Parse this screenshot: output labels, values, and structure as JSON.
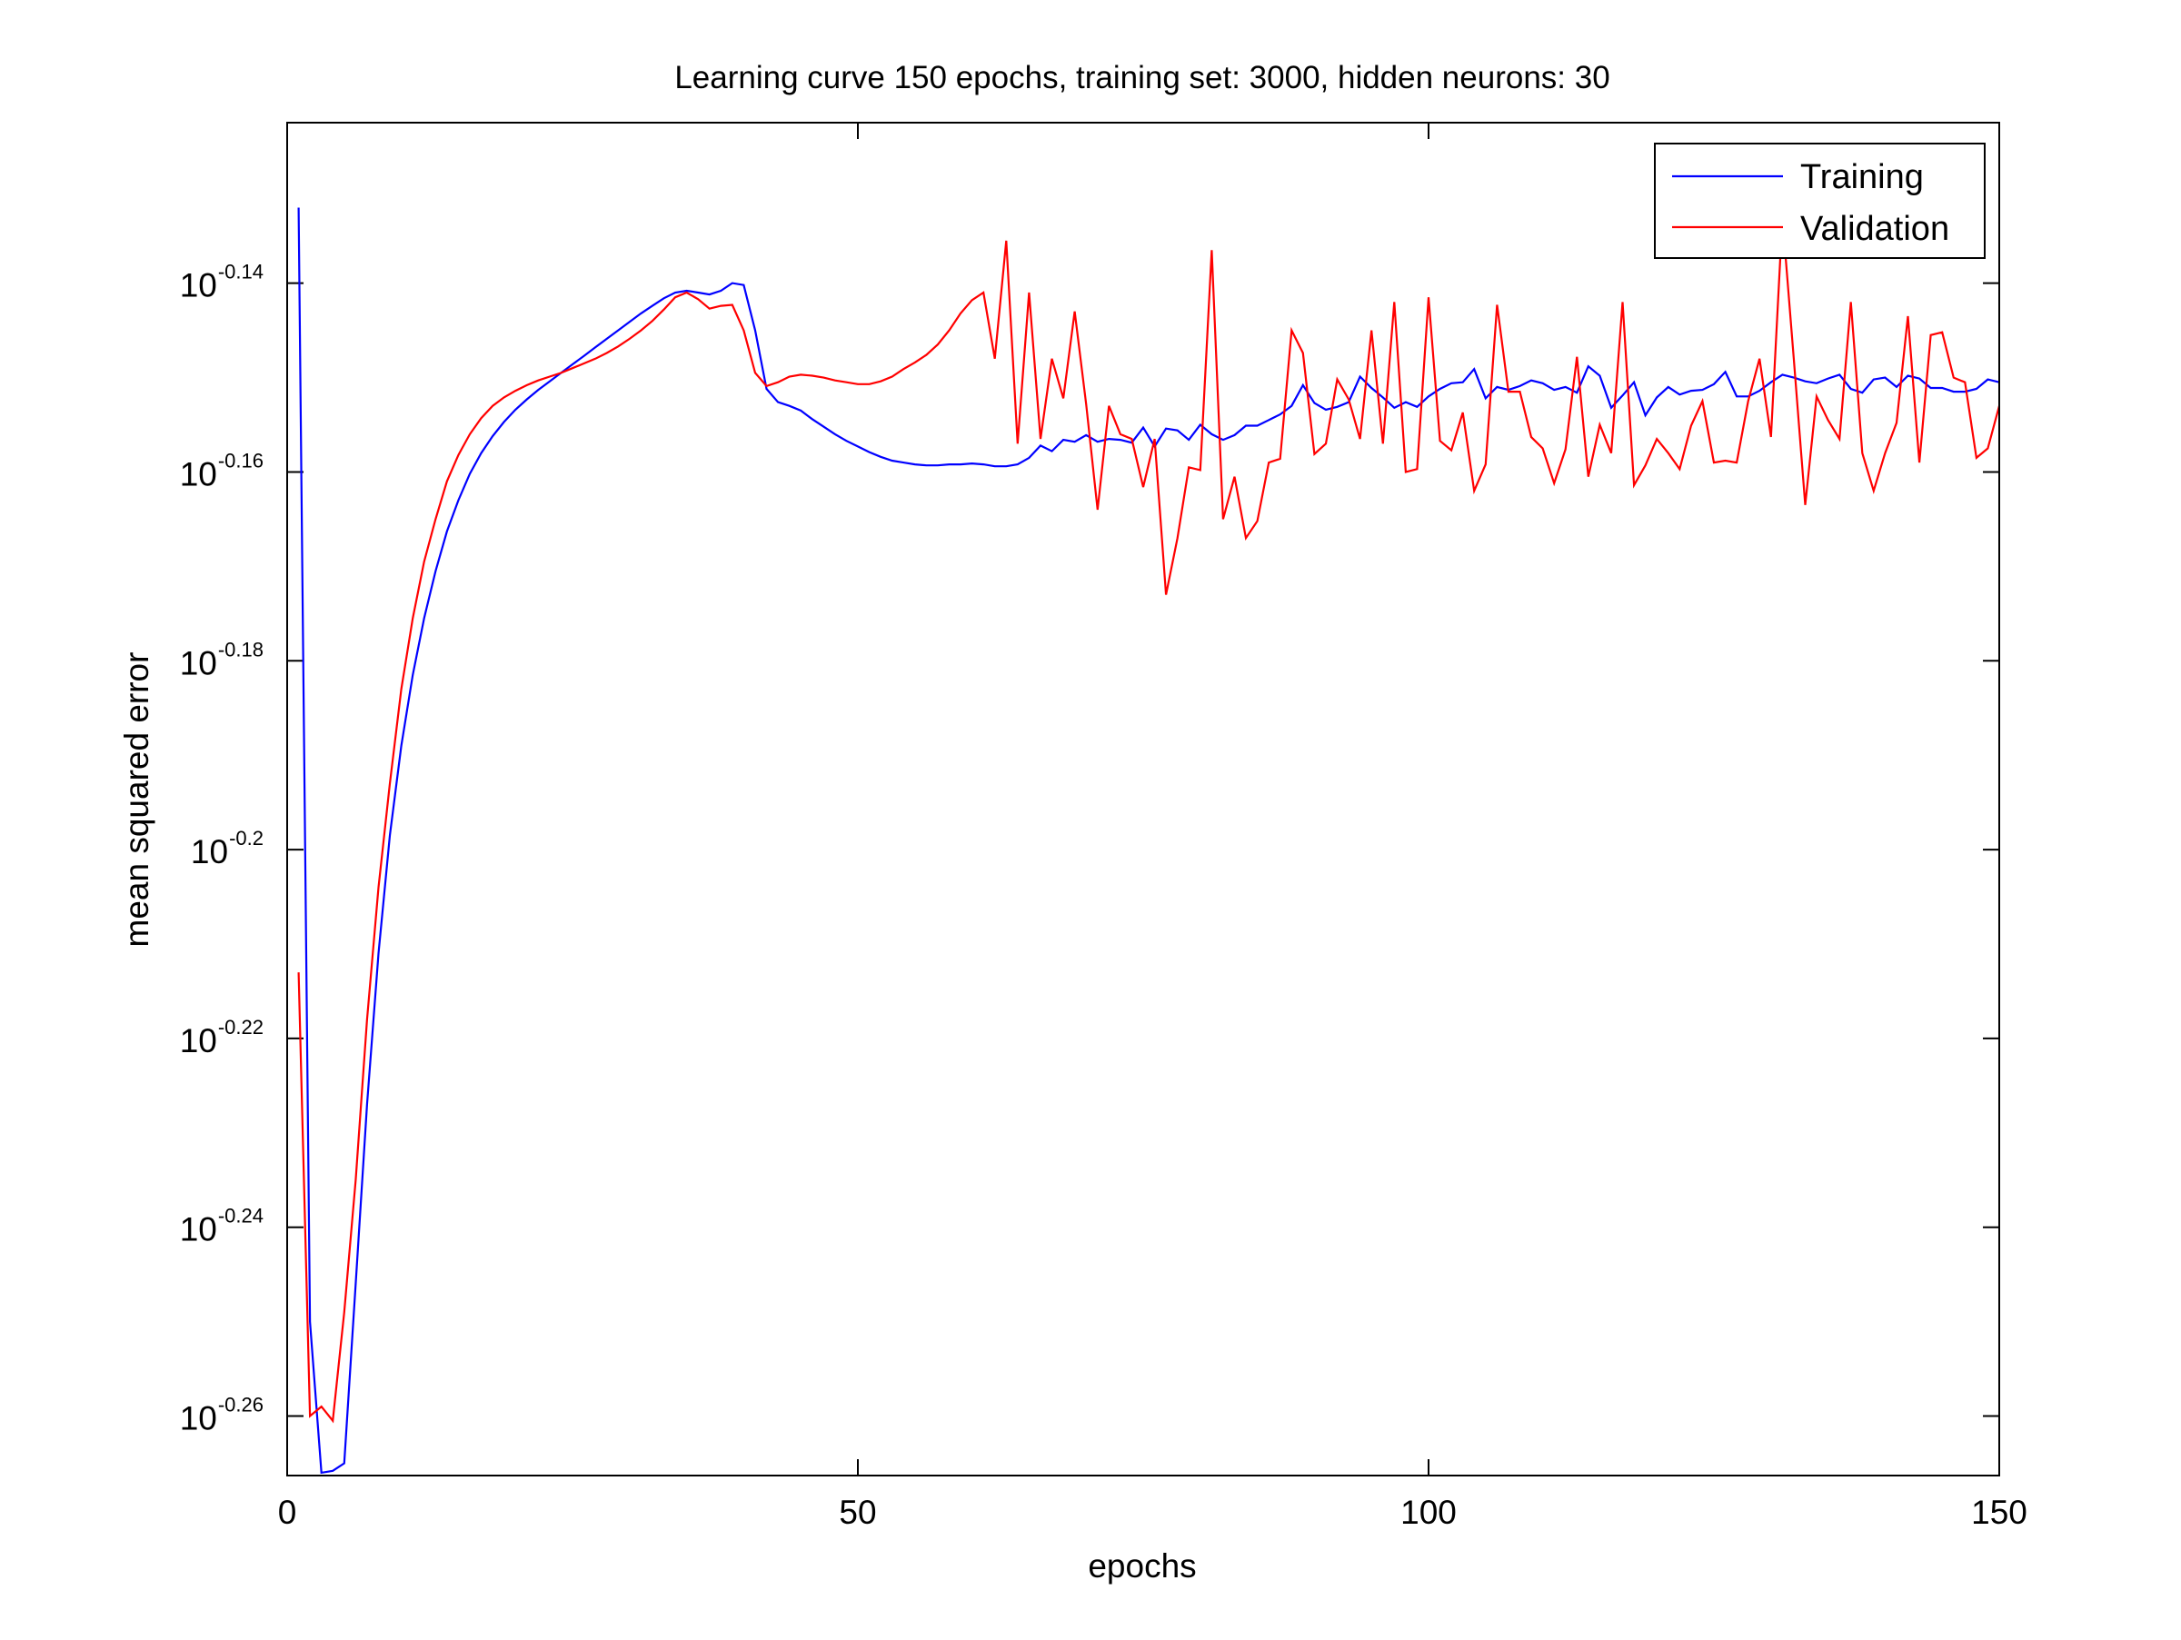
{
  "chart_data": {
    "type": "line",
    "title": "Learning curve 150 epochs, training set: 3000, hidden neurons: 30",
    "xlabel": "epochs",
    "ylabel": "mean squared error",
    "xlim": [
      0,
      150
    ],
    "ylim_log10": [
      -0.2663,
      -0.123
    ],
    "y_scale": "log",
    "grid": false,
    "legend_position": "top-right",
    "x_ticks": [
      {
        "value": 0,
        "label": "0"
      },
      {
        "value": 50,
        "label": "50"
      },
      {
        "value": 100,
        "label": "100"
      },
      {
        "value": 150,
        "label": "150"
      }
    ],
    "y_ticks": [
      {
        "log10": -0.14,
        "base": "10",
        "exponent": "-0.14"
      },
      {
        "log10": -0.16,
        "base": "10",
        "exponent": "-0.16"
      },
      {
        "log10": -0.18,
        "base": "10",
        "exponent": "-0.18"
      },
      {
        "log10": -0.2,
        "base": "10",
        "exponent": "-0.2"
      },
      {
        "log10": -0.22,
        "base": "10",
        "exponent": "-0.22"
      },
      {
        "log10": -0.24,
        "base": "10",
        "exponent": "-0.24"
      },
      {
        "log10": -0.26,
        "base": "10",
        "exponent": "-0.26"
      }
    ],
    "series": [
      {
        "name": "Training",
        "color": "#0000ff",
        "x": [
          1,
          2,
          3,
          4,
          5,
          6,
          7,
          8,
          9,
          10,
          11,
          12,
          13,
          14,
          15,
          16,
          17,
          18,
          19,
          20,
          21,
          22,
          23,
          24,
          25,
          26,
          27,
          28,
          29,
          30,
          31,
          32,
          33,
          34,
          35,
          36,
          37,
          38,
          39,
          40,
          41,
          42,
          43,
          44,
          45,
          46,
          47,
          48,
          49,
          50,
          51,
          52,
          53,
          54,
          55,
          56,
          57,
          58,
          59,
          60,
          61,
          62,
          63,
          64,
          65,
          66,
          67,
          68,
          69,
          70,
          71,
          72,
          73,
          74,
          75,
          76,
          77,
          78,
          79,
          80,
          81,
          82,
          83,
          84,
          85,
          86,
          87,
          88,
          89,
          90,
          91,
          92,
          93,
          94,
          95,
          96,
          97,
          98,
          99,
          100,
          101,
          102,
          103,
          104,
          105,
          106,
          107,
          108,
          109,
          110,
          111,
          112,
          113,
          114,
          115,
          116,
          117,
          118,
          119,
          120,
          121,
          122,
          123,
          124,
          125,
          126,
          127,
          128,
          129,
          130,
          131,
          132,
          133,
          134,
          135,
          136,
          137,
          138,
          139,
          140,
          141,
          142,
          143,
          144,
          145,
          146,
          147,
          148,
          149,
          150
        ],
        "log10_y": [
          -0.132,
          -0.25,
          -0.266,
          -0.2658,
          -0.265,
          -0.246,
          -0.227,
          -0.211,
          -0.1985,
          -0.189,
          -0.1815,
          -0.1755,
          -0.1705,
          -0.1663,
          -0.163,
          -0.1602,
          -0.158,
          -0.1562,
          -0.1547,
          -0.1534,
          -0.1523,
          -0.1513,
          -0.1504,
          -0.1495,
          -0.1486,
          -0.1477,
          -0.1468,
          -0.1459,
          -0.145,
          -0.1441,
          -0.1432,
          -0.1424,
          -0.1416,
          -0.141,
          -0.1408,
          -0.141,
          -0.1412,
          -0.1408,
          -0.14,
          -0.1402,
          -0.145,
          -0.1512,
          -0.1526,
          -0.153,
          -0.1535,
          -0.1544,
          -0.1552,
          -0.156,
          -0.1567,
          -0.1573,
          -0.1579,
          -0.1584,
          -0.1588,
          -0.159,
          -0.1592,
          -0.1593,
          -0.1593,
          -0.1592,
          -0.1592,
          -0.1591,
          -0.1592,
          -0.1594,
          -0.1594,
          -0.1592,
          -0.1585,
          -0.1572,
          -0.1578,
          -0.1566,
          -0.1568,
          -0.1561,
          -0.1568,
          -0.1565,
          -0.1566,
          -0.1569,
          -0.1553,
          -0.1573,
          -0.1554,
          -0.1556,
          -0.1566,
          -0.155,
          -0.156,
          -0.1566,
          -0.1561,
          -0.1551,
          -0.1551,
          -0.1545,
          -0.1539,
          -0.153,
          -0.1508,
          -0.1527,
          -0.1534,
          -0.1531,
          -0.1526,
          -0.1499,
          -0.1511,
          -0.1521,
          -0.1532,
          -0.1526,
          -0.1531,
          -0.152,
          -0.1512,
          -0.1506,
          -0.1505,
          -0.1491,
          -0.1522,
          -0.151,
          -0.1513,
          -0.1509,
          -0.1503,
          -0.1506,
          -0.1513,
          -0.151,
          -0.1516,
          -0.1488,
          -0.1498,
          -0.1532,
          -0.1519,
          -0.1505,
          -0.154,
          -0.1521,
          -0.151,
          -0.1518,
          -0.1514,
          -0.1513,
          -0.1507,
          -0.1494,
          -0.152,
          -0.152,
          -0.1514,
          -0.1505,
          -0.1497,
          -0.15,
          -0.1504,
          -0.1506,
          -0.1501,
          -0.1497,
          -0.1512,
          -0.1516,
          -0.1502,
          -0.15,
          -0.151,
          -0.1498,
          -0.1501,
          -0.1511,
          -0.1511,
          -0.1515,
          -0.1515,
          -0.1512,
          -0.1502,
          -0.1505,
          -0.151,
          -0.1503
        ]
      },
      {
        "name": "Validation",
        "color": "#ff0000",
        "x": [
          1,
          2,
          3,
          4,
          5,
          6,
          7,
          8,
          9,
          10,
          11,
          12,
          13,
          14,
          15,
          16,
          17,
          18,
          19,
          20,
          21,
          22,
          23,
          24,
          25,
          26,
          27,
          28,
          29,
          30,
          31,
          32,
          33,
          34,
          35,
          36,
          37,
          38,
          39,
          40,
          41,
          42,
          43,
          44,
          45,
          46,
          47,
          48,
          49,
          50,
          51,
          52,
          53,
          54,
          55,
          56,
          57,
          58,
          59,
          60,
          61,
          62,
          63,
          64,
          65,
          66,
          67,
          68,
          69,
          70,
          71,
          72,
          73,
          74,
          75,
          76,
          77,
          78,
          79,
          80,
          81,
          82,
          83,
          84,
          85,
          86,
          87,
          88,
          89,
          90,
          91,
          92,
          93,
          94,
          95,
          96,
          97,
          98,
          99,
          100,
          101,
          102,
          103,
          104,
          105,
          106,
          107,
          108,
          109,
          110,
          111,
          112,
          113,
          114,
          115,
          116,
          117,
          118,
          119,
          120,
          121,
          122,
          123,
          124,
          125,
          126,
          127,
          128,
          129,
          130,
          131,
          132,
          133,
          134,
          135,
          136,
          137,
          138,
          139,
          140,
          141,
          142,
          143,
          144,
          145,
          146,
          147,
          148,
          149,
          150
        ],
        "log10_y": [
          -0.213,
          -0.26,
          -0.259,
          -0.2605,
          -0.249,
          -0.235,
          -0.218,
          -0.204,
          -0.193,
          -0.183,
          -0.1755,
          -0.1695,
          -0.165,
          -0.161,
          -0.1582,
          -0.156,
          -0.1543,
          -0.153,
          -0.1521,
          -0.1514,
          -0.1508,
          -0.1503,
          -0.1499,
          -0.1495,
          -0.149,
          -0.1485,
          -0.148,
          -0.1474,
          -0.1467,
          -0.1459,
          -0.145,
          -0.144,
          -0.1428,
          -0.1415,
          -0.141,
          -0.1417,
          -0.1427,
          -0.1424,
          -0.1423,
          -0.145,
          -0.1495,
          -0.1509,
          -0.1505,
          -0.1499,
          -0.1497,
          -0.1498,
          -0.15,
          -0.1503,
          -0.1505,
          -0.1507,
          -0.1507,
          -0.1504,
          -0.1499,
          -0.1491,
          -0.1484,
          -0.1476,
          -0.1465,
          -0.145,
          -0.1432,
          -0.1418,
          -0.141,
          -0.148,
          -0.1355,
          -0.157,
          -0.141,
          -0.1565,
          -0.148,
          -0.1522,
          -0.143,
          -0.1528,
          -0.164,
          -0.153,
          -0.156,
          -0.1565,
          -0.1616,
          -0.1565,
          -0.173,
          -0.167,
          -0.1595,
          -0.1598,
          -0.1365,
          -0.165,
          -0.1605,
          -0.167,
          -0.1652,
          -0.159,
          -0.1586,
          -0.145,
          -0.1474,
          -0.1581,
          -0.157,
          -0.1502,
          -0.1523,
          -0.1565,
          -0.145,
          -0.157,
          -0.142,
          -0.16,
          -0.1597,
          -0.1415,
          -0.1567,
          -0.1577,
          -0.1537,
          -0.162,
          -0.1592,
          -0.1423,
          -0.1515,
          -0.1515,
          -0.1563,
          -0.1575,
          -0.1612,
          -0.1576,
          -0.1478,
          -0.1605,
          -0.155,
          -0.158,
          -0.142,
          -0.1614,
          -0.1593,
          -0.1565,
          -0.158,
          -0.1597,
          -0.1551,
          -0.1525,
          -0.159,
          -0.1588,
          -0.159,
          -0.1525,
          -0.148,
          -0.1563,
          -0.133,
          -0.148,
          -0.1635,
          -0.152,
          -0.1545,
          -0.1565,
          -0.142,
          -0.158,
          -0.162,
          -0.158,
          -0.1548,
          -0.1435,
          -0.159,
          -0.1455,
          -0.1452,
          -0.15,
          -0.1505,
          -0.1585,
          -0.1575,
          -0.153,
          -0.1612,
          -0.159
        ]
      }
    ]
  }
}
